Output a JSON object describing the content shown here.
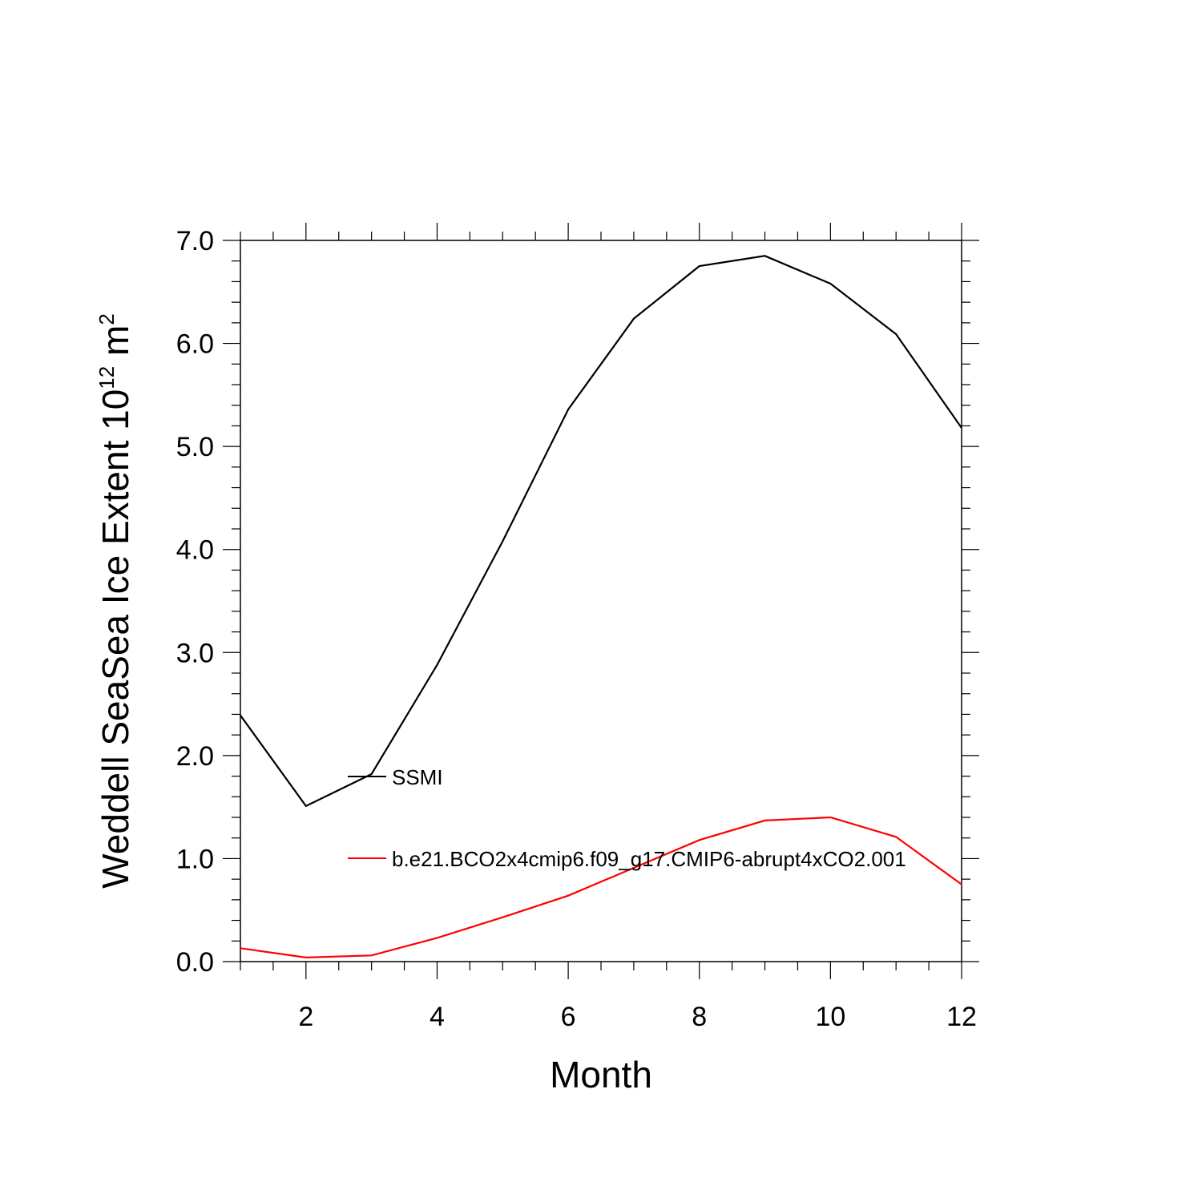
{
  "chart_data": {
    "type": "line",
    "title": "",
    "xlabel": "Month",
    "ylabel": {
      "prefix": "Weddell SeaSea Ice Extent 10",
      "exponent": "12",
      "unit": " m",
      "unit_exponent": "2"
    },
    "xlim": [
      1,
      12
    ],
    "ylim": [
      0,
      7
    ],
    "x_ticks": [
      2,
      4,
      6,
      8,
      10,
      12
    ],
    "x_tick_labels": [
      "2",
      "4",
      "6",
      "8",
      "10",
      "12"
    ],
    "y_ticks": [
      0,
      1,
      2,
      3,
      4,
      5,
      6,
      7
    ],
    "y_tick_labels": [
      "0.0",
      "1.0",
      "2.0",
      "3.0",
      "4.0",
      "5.0",
      "6.0",
      "7.0"
    ],
    "x": [
      1,
      2,
      3,
      4,
      5,
      6,
      7,
      8,
      9,
      10,
      11,
      12
    ],
    "series": [
      {
        "name": "SSMI",
        "color": "#000000",
        "values": [
          2.39,
          1.51,
          1.82,
          2.88,
          4.08,
          5.36,
          6.24,
          6.75,
          6.85,
          6.58,
          6.09,
          5.18
        ]
      },
      {
        "name": "b.e21.BCO2x4cmip6.f09_g17.CMIP6-abrupt4xCO2.001",
        "color": "#ff0000",
        "values": [
          0.13,
          0.04,
          0.06,
          0.23,
          0.43,
          0.64,
          0.91,
          1.18,
          1.37,
          1.4,
          1.21,
          0.75
        ]
      }
    ],
    "legend_position": "inside-left"
  }
}
